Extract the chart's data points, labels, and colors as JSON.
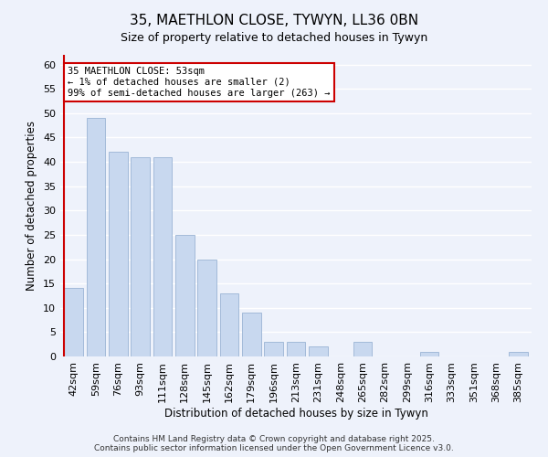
{
  "title": "35, MAETHLON CLOSE, TYWYN, LL36 0BN",
  "subtitle": "Size of property relative to detached houses in Tywyn",
  "xlabel": "Distribution of detached houses by size in Tywyn",
  "ylabel": "Number of detached properties",
  "bar_labels": [
    "42sqm",
    "59sqm",
    "76sqm",
    "93sqm",
    "111sqm",
    "128sqm",
    "145sqm",
    "162sqm",
    "179sqm",
    "196sqm",
    "213sqm",
    "231sqm",
    "248sqm",
    "265sqm",
    "282sqm",
    "299sqm",
    "316sqm",
    "333sqm",
    "351sqm",
    "368sqm",
    "385sqm"
  ],
  "bar_values": [
    14,
    49,
    42,
    41,
    41,
    25,
    20,
    13,
    9,
    3,
    3,
    2,
    0,
    3,
    0,
    0,
    1,
    0,
    0,
    0,
    1
  ],
  "bar_color": "#c8d8ef",
  "bar_edge_color": "#9ab4d4",
  "ylim": [
    0,
    62
  ],
  "yticks": [
    0,
    5,
    10,
    15,
    20,
    25,
    30,
    35,
    40,
    45,
    50,
    55,
    60
  ],
  "marker_color": "#cc0000",
  "annotation_line1": "35 MAETHLON CLOSE: 53sqm",
  "annotation_line2": "← 1% of detached houses are smaller (2)",
  "annotation_line3": "99% of semi-detached houses are larger (263) →",
  "annotation_box_color": "#cc0000",
  "footer_line1": "Contains HM Land Registry data © Crown copyright and database right 2025.",
  "footer_line2": "Contains public sector information licensed under the Open Government Licence v3.0.",
  "background_color": "#eef2fb",
  "grid_color": "#ffffff",
  "title_fontsize": 11,
  "subtitle_fontsize": 9,
  "axis_label_fontsize": 8.5,
  "tick_fontsize": 8,
  "footer_fontsize": 6.5
}
